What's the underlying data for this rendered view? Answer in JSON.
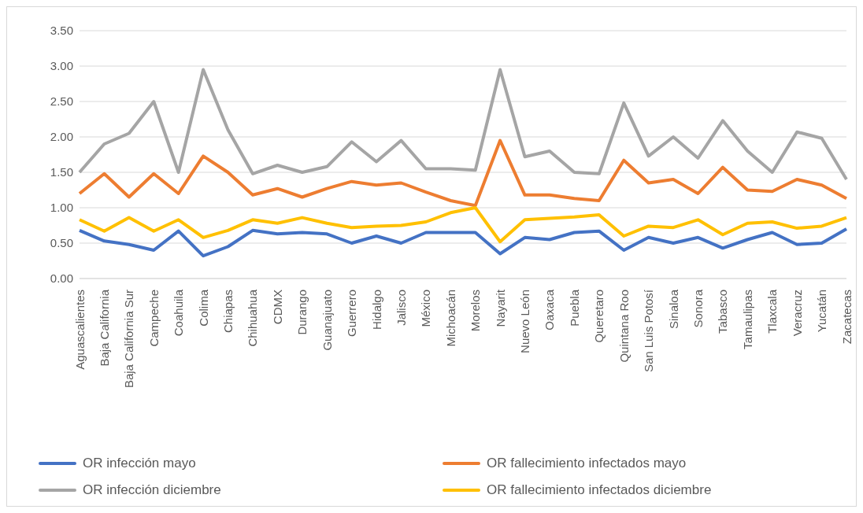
{
  "chart_data": {
    "type": "line",
    "categories": [
      "Aguascalientes",
      "Baja California",
      "Baja California Sur",
      "Campeche",
      "Coahuila",
      "Colima",
      "Chiapas",
      "Chihuahua",
      "CDMX",
      "Durango",
      "Guanajuato",
      "Guerrero",
      "Hidalgo",
      "Jalisco",
      "México",
      "Michoacán",
      "Morelos",
      "Nayarit",
      "Nuevo León",
      "Oaxaca",
      "Puebla",
      "Queretaro",
      "Quintana Roo",
      "San Luis Potosí",
      "Sinaloa",
      "Sonora",
      "Tabasco",
      "Tamaulipas",
      "Tlaxcala",
      "Veracruz",
      "Yucatán",
      "Zacatecas"
    ],
    "series": [
      {
        "name": "OR infección mayo",
        "color": "#4472c4",
        "values": [
          0.68,
          0.53,
          0.48,
          0.4,
          0.67,
          0.32,
          0.45,
          0.68,
          0.63,
          0.65,
          0.63,
          0.5,
          0.6,
          0.5,
          0.65,
          0.65,
          0.65,
          0.35,
          0.58,
          0.55,
          0.65,
          0.67,
          0.4,
          0.58,
          0.5,
          0.58,
          0.43,
          0.55,
          0.65,
          0.48,
          0.5,
          0.7
        ]
      },
      {
        "name": "OR fallecimiento infectados mayo",
        "color": "#ed7d31",
        "values": [
          1.2,
          1.48,
          1.15,
          1.48,
          1.2,
          1.73,
          1.5,
          1.18,
          1.27,
          1.15,
          1.27,
          1.37,
          1.32,
          1.35,
          1.22,
          1.1,
          1.03,
          1.95,
          1.18,
          1.18,
          1.13,
          1.1,
          1.67,
          1.35,
          1.4,
          1.2,
          1.57,
          1.25,
          1.23,
          1.4,
          1.32,
          1.13
        ]
      },
      {
        "name": "OR infección diciembre",
        "color": "#a5a5a5",
        "values": [
          1.5,
          1.9,
          2.05,
          2.5,
          1.5,
          2.95,
          2.1,
          1.48,
          1.6,
          1.5,
          1.58,
          1.93,
          1.65,
          1.95,
          1.55,
          1.55,
          1.53,
          2.95,
          1.72,
          1.8,
          1.5,
          1.48,
          2.48,
          1.73,
          2.0,
          1.7,
          2.23,
          1.8,
          1.5,
          2.07,
          1.98,
          1.4
        ]
      },
      {
        "name": "OR fallecimiento infectados diciembre",
        "color": "#ffc000",
        "values": [
          0.83,
          0.67,
          0.86,
          0.67,
          0.83,
          0.58,
          0.68,
          0.83,
          0.78,
          0.86,
          0.78,
          0.72,
          0.74,
          0.75,
          0.8,
          0.93,
          1.0,
          0.52,
          0.83,
          0.85,
          0.87,
          0.9,
          0.6,
          0.74,
          0.72,
          0.83,
          0.62,
          0.78,
          0.8,
          0.71,
          0.74,
          0.86
        ]
      }
    ],
    "ylim": [
      0,
      3.5
    ],
    "yticks": [
      {
        "value": 0,
        "label": "0.00"
      },
      {
        "value": 0.5,
        "label": "0.50"
      },
      {
        "value": 1,
        "label": "1.00"
      },
      {
        "value": 1.5,
        "label": "1.50"
      },
      {
        "value": 2,
        "label": "2.00"
      },
      {
        "value": 2.5,
        "label": "2.50"
      },
      {
        "value": 3,
        "label": "3.00"
      },
      {
        "value": 3.5,
        "label": "3.50"
      }
    ],
    "grid": "y",
    "legend": "bottom",
    "marker": "none",
    "line_style": "solid"
  }
}
